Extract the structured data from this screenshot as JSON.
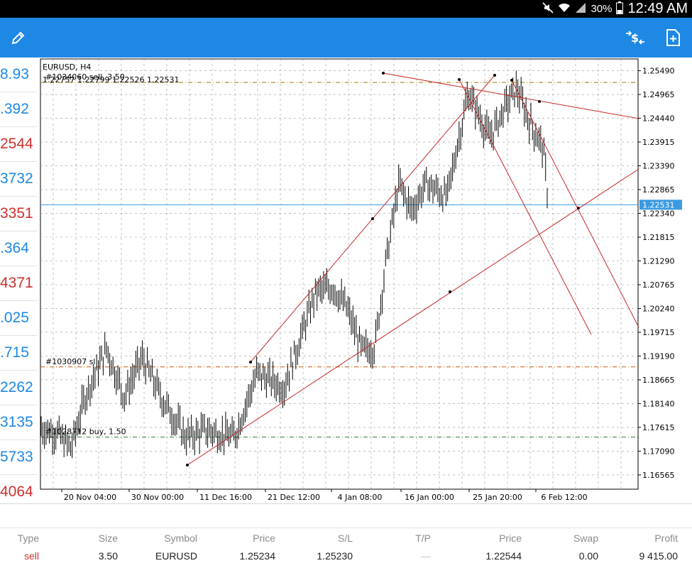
{
  "status": {
    "battery": "30%",
    "time": "12:49 AM"
  },
  "toolbar": {
    "icons": [
      "pencil-icon",
      "one-click-trading-icon",
      "new-order-icon"
    ]
  },
  "colors": {
    "appbar": "#1e88e5",
    "up": "#1e88e5",
    "down": "#d0312d",
    "trendline": "#c62828",
    "price_line": "#3b9ae1",
    "sell_level": "#9c7a00",
    "sl_level": "#d35400",
    "buy_level": "#2e7d32"
  },
  "quotes": [
    {
      "text": "8.93",
      "dir": "up"
    },
    {
      "text": ".392",
      "dir": "up"
    },
    {
      "text": "2544",
      "dir": "down"
    },
    {
      "text": "3732",
      "dir": "up"
    },
    {
      "text": "3351",
      "dir": "down"
    },
    {
      "text": ".364",
      "dir": "up"
    },
    {
      "text": "4371",
      "dir": "down"
    },
    {
      "text": ".025",
      "dir": "up"
    },
    {
      "text": ".715",
      "dir": "up"
    },
    {
      "text": "2262",
      "dir": "up"
    },
    {
      "text": "3135",
      "dir": "up"
    },
    {
      "text": "5733",
      "dir": "up"
    },
    {
      "text": "4064",
      "dir": "down"
    }
  ],
  "chart": {
    "symbol": "EURUSD, H4",
    "ohlc": "1.22757 1.22799 1.22526 1.22531",
    "current_price": "1.22531",
    "price_labels": [
      "1.25490",
      "1.24965",
      "1.24440",
      "1.23915",
      "1.23390",
      "1.22865",
      "1.22340",
      "1.21815",
      "1.21290",
      "1.20765",
      "1.20240",
      "1.19715",
      "1.19190",
      "1.18665",
      "1.18140",
      "1.17615",
      "1.17090",
      "1.16565"
    ],
    "time_labels": [
      "20 Nov 04:00",
      "30 Nov 00:00",
      "11 Dec 16:00",
      "21 Dec 12:00",
      "4 Jan 08:00",
      "16 Jan 00:00",
      "25 Jan 20:00",
      "6 Feb 12:00"
    ],
    "order_labels": [
      "#1034060 sell, 3.50",
      "#1030907 sl",
      "#1028712 buy, 1.50"
    ]
  },
  "chart_data": {
    "type": "line",
    "title": "EURUSD, H4",
    "xlabel": "",
    "ylabel": "",
    "ylim": [
      1.1625,
      1.2575
    ],
    "x": [
      "20 Nov 04:00",
      "30 Nov 00:00",
      "11 Dec 16:00",
      "21 Dec 12:00",
      "4 Jan 08:00",
      "16 Jan 00:00",
      "25 Jan 20:00",
      "6 Feb 12:00"
    ],
    "y": [
      1.1745,
      1.1885,
      1.1775,
      1.189,
      1.195,
      1.228,
      1.251,
      1.2253
    ],
    "levels": [
      {
        "label": "#1034060 sell, 3.50",
        "price": 1.2523
      },
      {
        "label": "#1030907 sl",
        "price": 1.1895
      },
      {
        "label": "#1028712 buy, 1.50",
        "price": 1.174
      },
      {
        "label": "1.22531",
        "price": 1.22531
      }
    ]
  },
  "positions": {
    "headers": [
      "Type",
      "Size",
      "Symbol",
      "Price",
      "S/L",
      "T/P",
      "Price",
      "Swap",
      "Profit"
    ],
    "rows": [
      [
        "sell",
        "3.50",
        "EURUSD",
        "1.25234",
        "1.25230",
        "—",
        "1.22544",
        "0.00",
        "9 415.00"
      ]
    ]
  }
}
